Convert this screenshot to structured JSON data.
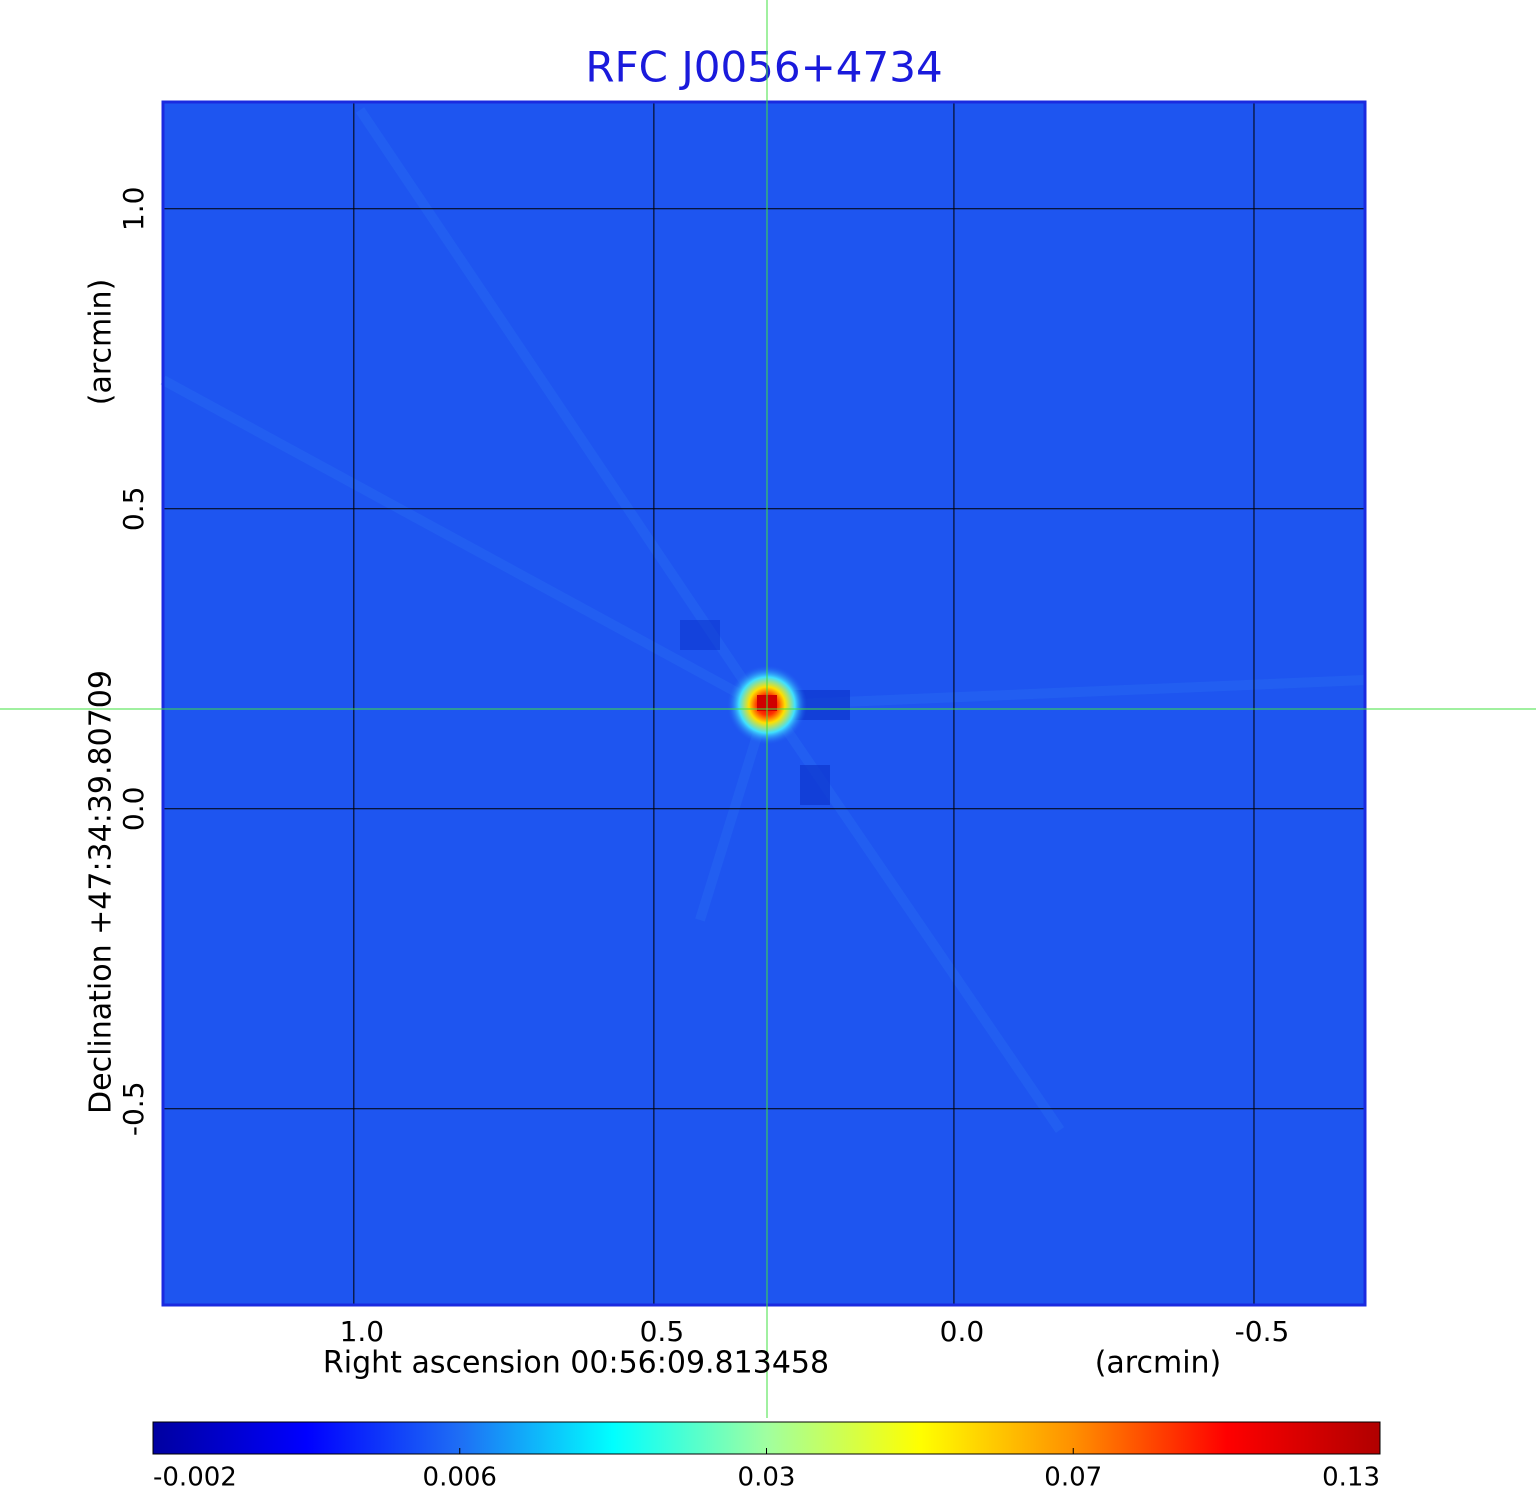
{
  "chart_data": {
    "type": "image",
    "title": "RFC J0056+4734",
    "x_label": "Right ascension  00:56:09.813458",
    "x_unit": "(arcmin)",
    "y_label": "Declination  +47:34:39.80709",
    "y_unit": "(arcmin)",
    "xlim": [
      1.318,
      -0.685
    ],
    "ylim": [
      -0.827,
      1.178
    ],
    "xticks": [
      {
        "value": 1,
        "label": "1.0"
      },
      0.5,
      {
        "value": 0,
        "label": "0.0"
      },
      -0.5
    ],
    "yticks": [
      {
        "value": 1,
        "label": "1.0"
      },
      0.5,
      {
        "value": 0,
        "label": "0.0"
      },
      -0.5
    ],
    "grid": true,
    "colorbar": {
      "ticks": [
        -0.002,
        0.006,
        0.03,
        0.07,
        0.13
      ],
      "colors": [
        "#0000a0",
        "#0000ff",
        "#1e6ef5",
        "#00ffff",
        "#a0ffa0",
        "#ffff00",
        "#ff9000",
        "#ff0000",
        "#b00000"
      ]
    }
  }
}
